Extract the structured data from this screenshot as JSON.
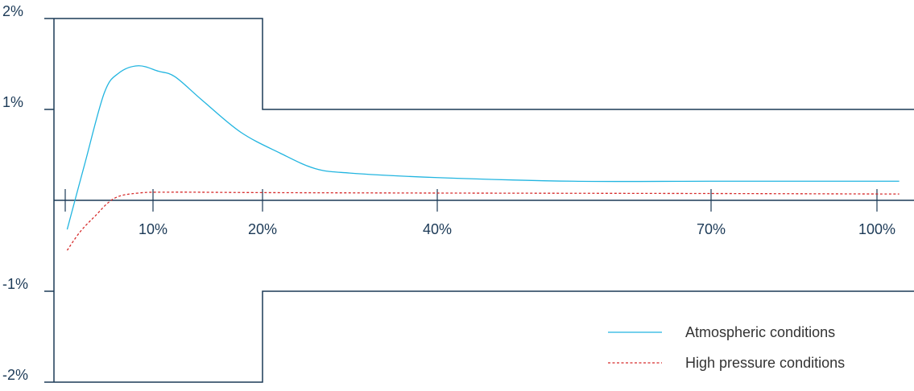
{
  "chart_data": {
    "type": "line",
    "title": "",
    "xlabel": "",
    "ylabel": "",
    "xlim": [
      0,
      105
    ],
    "ylim": [
      -2,
      2
    ],
    "x_ticks": [
      {
        "value": 1,
        "label": ""
      },
      {
        "value": 10,
        "label": "10%"
      },
      {
        "value": 20,
        "label": "20%"
      },
      {
        "value": 40,
        "label": "40%"
      },
      {
        "value": 70,
        "label": "70%"
      },
      {
        "value": 100,
        "label": "100%"
      }
    ],
    "y_ticks": [
      {
        "value": 2,
        "label": "2%"
      },
      {
        "value": 1,
        "label": "1%"
      },
      {
        "value": -1,
        "label": "-1%"
      },
      {
        "value": -2,
        "label": "-2%"
      }
    ],
    "grid": false,
    "legend_position": "bottom-right",
    "tolerance_band": {
      "upper": [
        {
          "x": 0,
          "y": 2
        },
        {
          "x": 20,
          "y": 2
        },
        {
          "x": 20,
          "y": 1
        },
        {
          "x": 105,
          "y": 1
        }
      ],
      "lower": [
        {
          "x": 0,
          "y": -2
        },
        {
          "x": 20,
          "y": -2
        },
        {
          "x": 20,
          "y": -1
        },
        {
          "x": 105,
          "y": -1
        }
      ],
      "color": "#1c3a57"
    },
    "series": [
      {
        "name": "Atmospheric conditions",
        "color": "#22b5e0",
        "style": "solid",
        "points": [
          {
            "x": 1.2,
            "y": -0.32
          },
          {
            "x": 3,
            "y": 0.4
          },
          {
            "x": 5,
            "y": 1.18
          },
          {
            "x": 6.5,
            "y": 1.4
          },
          {
            "x": 8.5,
            "y": 1.48
          },
          {
            "x": 10.5,
            "y": 1.42
          },
          {
            "x": 12,
            "y": 1.36
          },
          {
            "x": 14.5,
            "y": 1.1
          },
          {
            "x": 18,
            "y": 0.75
          },
          {
            "x": 22,
            "y": 0.52
          },
          {
            "x": 26,
            "y": 0.35
          },
          {
            "x": 30,
            "y": 0.3
          },
          {
            "x": 40,
            "y": 0.25
          },
          {
            "x": 55,
            "y": 0.21
          },
          {
            "x": 70,
            "y": 0.21
          },
          {
            "x": 100,
            "y": 0.21
          },
          {
            "x": 103,
            "y": 0.21
          }
        ]
      },
      {
        "name": "High pressure conditions",
        "color": "#d62b2b",
        "style": "dashed",
        "points": [
          {
            "x": 1.2,
            "y": -0.55
          },
          {
            "x": 2.5,
            "y": -0.35
          },
          {
            "x": 4,
            "y": -0.18
          },
          {
            "x": 6,
            "y": 0.02
          },
          {
            "x": 8.5,
            "y": 0.08
          },
          {
            "x": 12,
            "y": 0.09
          },
          {
            "x": 20,
            "y": 0.085
          },
          {
            "x": 40,
            "y": 0.08
          },
          {
            "x": 70,
            "y": 0.075
          },
          {
            "x": 100,
            "y": 0.07
          },
          {
            "x": 103,
            "y": 0.07
          }
        ]
      }
    ]
  }
}
